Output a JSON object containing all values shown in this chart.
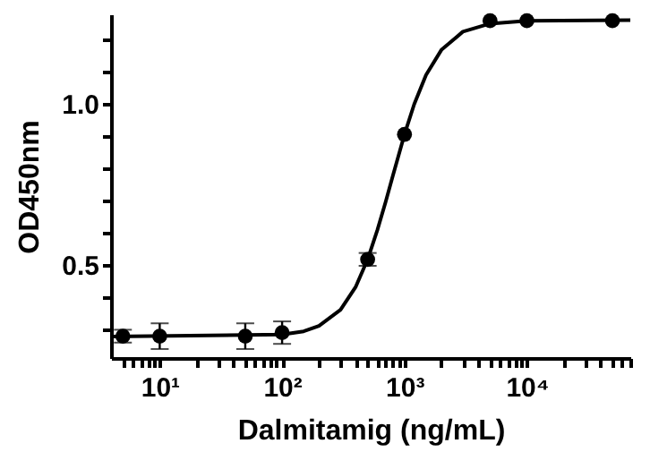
{
  "chart_data": {
    "type": "scatter",
    "xlabel": "Dalmitamig (ng/mL)",
    "ylabel": "OD450nm",
    "log": "x",
    "xlim": [
      4,
      70000
    ],
    "ylim": [
      0.21,
      1.28
    ],
    "xticks": [
      {
        "value": 5,
        "label": null
      },
      {
        "value": 6,
        "label": null
      },
      {
        "value": 7,
        "label": null
      },
      {
        "value": 8,
        "label": null
      },
      {
        "value": 9,
        "label": null
      },
      {
        "value": 10,
        "label": "10¹"
      },
      {
        "value": 20,
        "label": null
      },
      {
        "value": 30,
        "label": null
      },
      {
        "value": 40,
        "label": null
      },
      {
        "value": 50,
        "label": null
      },
      {
        "value": 60,
        "label": null
      },
      {
        "value": 70,
        "label": null
      },
      {
        "value": 80,
        "label": null
      },
      {
        "value": 90,
        "label": null
      },
      {
        "value": 100,
        "label": "10²"
      },
      {
        "value": 200,
        "label": null
      },
      {
        "value": 300,
        "label": null
      },
      {
        "value": 400,
        "label": null
      },
      {
        "value": 500,
        "label": null
      },
      {
        "value": 600,
        "label": null
      },
      {
        "value": 700,
        "label": null
      },
      {
        "value": 800,
        "label": null
      },
      {
        "value": 900,
        "label": null
      },
      {
        "value": 1000,
        "label": "10³"
      },
      {
        "value": 2000,
        "label": null
      },
      {
        "value": 3000,
        "label": null
      },
      {
        "value": 4000,
        "label": null
      },
      {
        "value": 5000,
        "label": null
      },
      {
        "value": 6000,
        "label": null
      },
      {
        "value": 7000,
        "label": null
      },
      {
        "value": 8000,
        "label": null
      },
      {
        "value": 9000,
        "label": null
      },
      {
        "value": 10000,
        "label": "10⁴"
      },
      {
        "value": 20000,
        "label": null
      },
      {
        "value": 30000,
        "label": null
      },
      {
        "value": 40000,
        "label": null
      },
      {
        "value": 50000,
        "label": null
      },
      {
        "value": 60000,
        "label": null
      },
      {
        "value": 70000,
        "label": null
      }
    ],
    "yticks": [
      {
        "value": 0.3,
        "label": null
      },
      {
        "value": 0.4,
        "label": null
      },
      0.5,
      {
        "value": 0.6,
        "label": null
      },
      {
        "value": 0.7,
        "label": null
      },
      {
        "value": 0.8,
        "label": null
      },
      {
        "value": 0.9,
        "label": null
      },
      {
        "value": 1,
        "label": "1.0"
      },
      {
        "value": 1.1,
        "label": null
      },
      {
        "value": 1.2,
        "label": null
      }
    ],
    "series": [
      {
        "type": "line",
        "color": "#000000",
        "line_style": "solid",
        "x": [
          4,
          100,
          150,
          200,
          300,
          400,
          500,
          600,
          700,
          800,
          1000,
          1200,
          1500,
          2000,
          3000,
          5000,
          10000,
          70000
        ],
        "values": [
          0.277,
          0.283,
          0.293,
          0.31,
          0.36,
          0.432,
          0.517,
          0.608,
          0.695,
          0.775,
          0.906,
          1.0,
          1.091,
          1.169,
          1.226,
          1.251,
          1.26,
          1.262
        ]
      },
      {
        "color": "#000000",
        "marker": "circle",
        "x": [
          5,
          10,
          50,
          100,
          500,
          1000,
          5000,
          10000,
          50000
        ],
        "values": [
          0.278,
          0.278,
          0.278,
          0.289,
          0.517,
          0.906,
          1.26,
          1.26,
          1.26
        ],
        "errors": [
          0.02,
          0.04,
          0.04,
          0.035,
          0.02,
          null,
          null,
          null,
          null
        ]
      }
    ]
  }
}
